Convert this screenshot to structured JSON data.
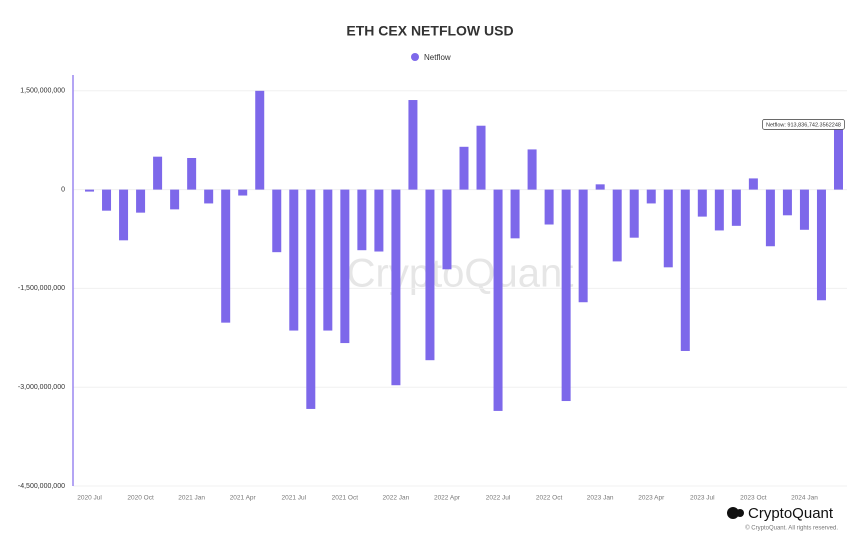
{
  "chart_data": {
    "type": "bar",
    "title": "ETH CEX NETFLOW USD",
    "categories": [
      "2020 Jul",
      null,
      null,
      "2020 Oct",
      null,
      null,
      "2021 Jan",
      null,
      null,
      "2021 Apr",
      null,
      null,
      "2021 Jul",
      null,
      null,
      "2021 Oct",
      null,
      null,
      "2022 Jan",
      null,
      null,
      "2022 Apr",
      null,
      null,
      "2022 Jul",
      null,
      null,
      "2022 Oct",
      null,
      null,
      "2023 Jan",
      null,
      null,
      "2023 Apr",
      null,
      null,
      "2023 Jul",
      null,
      null,
      "2023 Oct",
      null,
      null,
      "2024 Jan",
      null,
      null
    ],
    "series": [
      {
        "name": "Netflow",
        "color": "#7d68ea",
        "values": [
          -30000000,
          -320000000,
          -770000000,
          -350000000,
          500000000,
          -300000000,
          480000000,
          -210000000,
          -2020000000,
          -90000000,
          1500000000,
          -950000000,
          -2140000000,
          -3330000000,
          -2140000000,
          -2330000000,
          -920000000,
          -940000000,
          -2970000000,
          1360000000,
          -2590000000,
          -1210000000,
          650000000,
          970000000,
          -3360000000,
          -740000000,
          610000000,
          -530000000,
          -3210000000,
          -1710000000,
          80000000,
          -1090000000,
          -730000000,
          -210000000,
          -1180000000,
          -2450000000,
          -410000000,
          -620000000,
          -550000000,
          170000000,
          -860000000,
          -390000000,
          -610000000,
          -1680000000,
          913836742.3562248
        ]
      }
    ],
    "ylim": [
      -4500000000,
      1740000000
    ],
    "yticks": [
      {
        "value": 1500000000,
        "label": "1,500,000,000"
      },
      0,
      {
        "value": -1500000000,
        "label": "-1,500,000,000"
      },
      {
        "value": -3000000000,
        "label": "-3,000,000,000"
      },
      {
        "value": -4500000000,
        "label": "-4,500,000,000"
      }
    ],
    "grid": true,
    "tooltip": "Netflow: 913,836,742.3562248",
    "watermark": "CryptoQuant",
    "brand": "CryptoQuant",
    "copyright": "© CryptoQuant. All rights reserved."
  }
}
